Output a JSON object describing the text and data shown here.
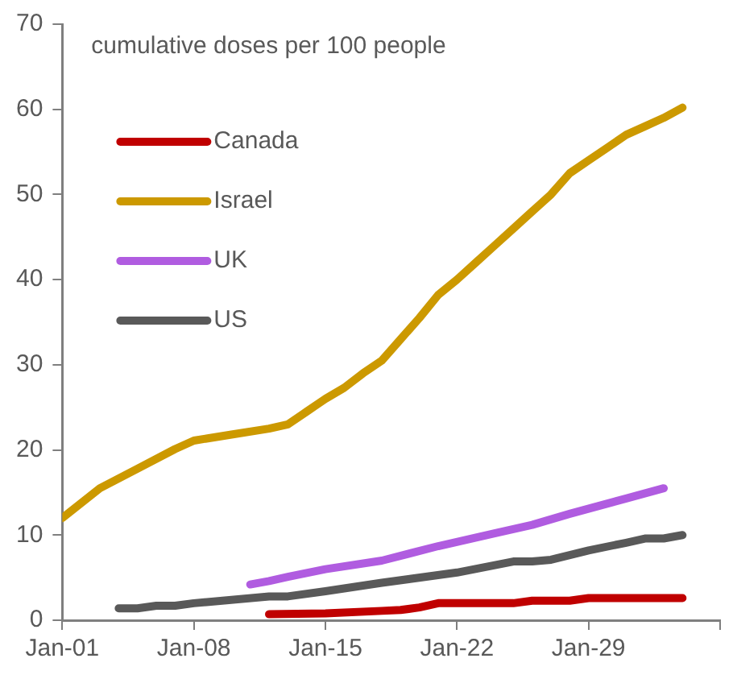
{
  "chart_data": {
    "type": "line",
    "ylabel": "cumulative doses per 100 people",
    "xlim": [
      "--01-01",
      "--02-05"
    ],
    "xticks": [
      {
        "value": "--01-01",
        "label": "Jan-01"
      },
      {
        "value": "--01-08",
        "label": "Jan-08"
      },
      {
        "value": "--01-15",
        "label": "Jan-15"
      },
      {
        "value": "--01-22",
        "label": "Jan-22"
      },
      {
        "value": "--01-29",
        "label": "Jan-29"
      },
      {
        "value": "--02-05",
        "label": null
      }
    ],
    "ylim": [
      0,
      70
    ],
    "yticks": [
      0,
      10,
      20,
      30,
      40,
      50,
      60,
      70
    ],
    "grid": false,
    "legend": "top left",
    "marker": "none",
    "line_style": "solid",
    "series": [
      {
        "name": "Canada",
        "color": "#c00000",
        "x": [
          "--01-12",
          "--01-15",
          "--01-18",
          "--01-19",
          "--01-20",
          "--01-21",
          "--01-25",
          "--01-26",
          "--01-28",
          "--01-29",
          "--02-03"
        ],
        "values": [
          0.7,
          0.8,
          1.1,
          1.2,
          1.5,
          2,
          2,
          2.3,
          2.3,
          2.6,
          2.6
        ]
      },
      {
        "name": "Israel",
        "color": "#cc9900",
        "x": [
          "--01-01",
          "--01-03",
          "--01-05",
          "--01-07",
          "--01-08",
          "--01-10",
          "--01-12",
          "--01-13",
          "--01-14",
          "--01-15",
          "--01-16",
          "--01-17",
          "--01-18",
          "--01-19",
          "--01-20",
          "--01-21",
          "--01-22",
          "--01-23",
          "--01-24",
          "--01-25",
          "--01-26",
          "--01-27",
          "--01-28",
          "--01-29",
          "--01-30",
          "--01-31",
          "--02-01",
          "--02-02",
          "--02-03"
        ],
        "values": [
          12,
          15.5,
          17.8,
          20.1,
          21.1,
          21.8,
          22.5,
          23,
          24.5,
          26,
          27.3,
          29,
          30.5,
          33,
          35.5,
          38.2,
          40,
          42,
          44,
          46,
          48,
          50,
          52.5,
          54,
          55.5,
          57,
          58,
          59,
          60.2
        ]
      },
      {
        "name": "UK",
        "color": "#b05ce0",
        "x": [
          "--01-11",
          "--01-12",
          "--01-13",
          "--01-15",
          "--01-18",
          "--01-21",
          "--01-24",
          "--01-26",
          "--01-28",
          "--01-31",
          "--02-02"
        ],
        "values": [
          4.2,
          4.6,
          5.1,
          6,
          7,
          8.7,
          10.2,
          11.2,
          12.5,
          14.3,
          15.5
        ]
      },
      {
        "name": "US",
        "color": "#595959",
        "x": [
          "--01-04",
          "--01-05",
          "--01-06",
          "--01-07",
          "--01-08",
          "--01-12",
          "--01-13",
          "--01-15",
          "--01-18",
          "--01-22",
          "--01-25",
          "--01-26",
          "--01-27",
          "--01-29",
          "--01-31",
          "--02-01",
          "--02-02",
          "--02-03"
        ],
        "values": [
          1.4,
          1.4,
          1.7,
          1.7,
          2,
          2.8,
          2.8,
          3.4,
          4.4,
          5.6,
          6.9,
          6.9,
          7.1,
          8.2,
          9.1,
          9.6,
          9.6,
          10
        ]
      }
    ]
  }
}
